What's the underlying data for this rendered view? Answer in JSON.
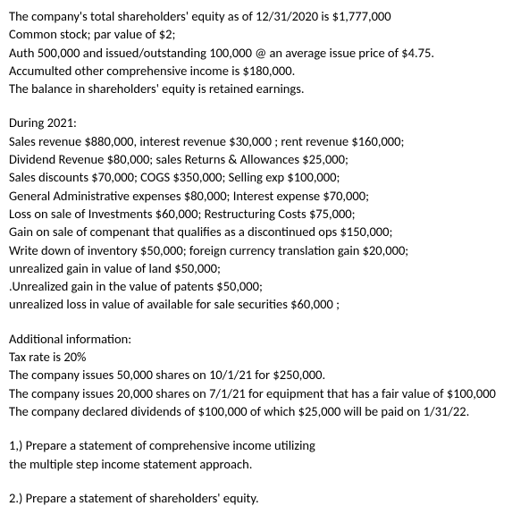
{
  "intro": {
    "l1": "The company's total shareholders' equity  as of 12/31/2020 is $1,777,000",
    "l2": "Common stock;  par value of $2;",
    "l3": "Auth 500,000 and issued/outstanding  100,000 @ an  average issue price of $4.75.",
    "l4": "Accumulted other comprehensive income is $180,000.",
    "l5": "The balance in shareholders' equity is retained earnings."
  },
  "during": {
    "heading": "During 2021:",
    "l1": " Sales revenue $880,000, interest revenue $30,000 ; rent revenue $160,000;",
    "l2": "Dividend Revenue $80,000; sales Returns & Allowances $25,000;",
    "l3": " Sales discounts $70,000;    COGS $350,000; Selling exp $100,000;",
    "l4": " General Administrative expenses $80,000; Interest expense $70,000;",
    "l5": " Loss on sale of Investments $60,000; Restructuring Costs $75,000;",
    "l6": "Gain on sale of compenant that qualifies as a discontinued ops $150,000;",
    "l7": "Write down of inventory $50,000; foreign currency translation gain $20,000;",
    "l8": "unrealized gain in value of land $50,000;",
    "l9": ".Unrealized gain in the value of patents $50,000;",
    "l10": "unrealized loss in value of available for sale securities $60,000 ;"
  },
  "additional": {
    "heading": "Additional information:",
    "l1": "Tax rate is 20%",
    "l2": "The company issues 50,000 shares on 10/1/21 for $250,000.",
    "l3": "The company issues 20,000 shares on 7/1/21 for equipment that has a fair value of $100,000",
    "l4": "The company declared dividends of $100,000 of which $25,000 will be paid on 1/31/22."
  },
  "q1": {
    "l1": "1,) Prepare a statement of comprehensive income utilizing",
    "l2": "the multiple step income statement approach."
  },
  "q2": {
    "l1": "2.)  Prepare a statement of shareholders' equity."
  }
}
